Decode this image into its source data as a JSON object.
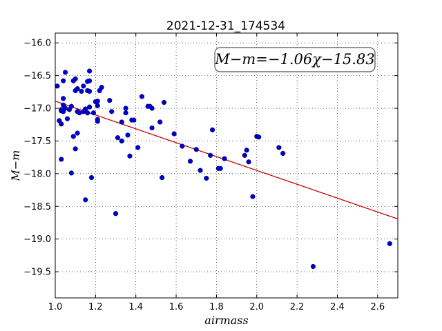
{
  "chart_data": {
    "type": "scatter",
    "title": "2021-12-31_174534",
    "xlabel": "airmass",
    "ylabel": "M−m",
    "xlim": [
      1.0,
      2.7
    ],
    "ylim": [
      -19.9,
      -15.85
    ],
    "y_inverted": true,
    "grid": true,
    "xticks": [
      "1.0",
      "1.2",
      "1.4",
      "1.6",
      "1.8",
      "2.0",
      "2.2",
      "2.4",
      "2.6"
    ],
    "yticks": [
      "−16.0",
      "−16.5",
      "−17.0",
      "−17.5",
      "−18.0",
      "−18.5",
      "−19.0",
      "−19.5"
    ],
    "annotation": "M−m=−1.06χ−15.83",
    "point_color": "#0000cc",
    "fit_color": "#cc0000",
    "fit": {
      "slope": -1.06,
      "intercept": -15.83
    },
    "points": [
      [
        1.01,
        -16.66
      ],
      [
        1.02,
        -17.19
      ],
      [
        1.03,
        -17.24
      ],
      [
        1.03,
        -17.78
      ],
      [
        1.03,
        -17.04
      ],
      [
        1.03,
        -17.02
      ],
      [
        1.04,
        -17.05
      ],
      [
        1.04,
        -16.85
      ],
      [
        1.04,
        -16.95
      ],
      [
        1.04,
        -16.58
      ],
      [
        1.05,
        -16.45
      ],
      [
        1.05,
        -17.0
      ],
      [
        1.06,
        -17.16
      ],
      [
        1.07,
        -17.02
      ],
      [
        1.08,
        -16.97
      ],
      [
        1.08,
        -17.99
      ],
      [
        1.09,
        -16.58
      ],
      [
        1.09,
        -17.43
      ],
      [
        1.1,
        -16.55
      ],
      [
        1.1,
        -16.73
      ],
      [
        1.1,
        -17.62
      ],
      [
        1.11,
        -17.38
      ],
      [
        1.11,
        -16.7
      ],
      [
        1.11,
        -17.05
      ],
      [
        1.12,
        -17.07
      ],
      [
        1.13,
        -16.74
      ],
      [
        1.14,
        -17.05
      ],
      [
        1.14,
        -16.66
      ],
      [
        1.15,
        -17.01
      ],
      [
        1.15,
        -18.4
      ],
      [
        1.16,
        -17.07
      ],
      [
        1.16,
        -16.73
      ],
      [
        1.16,
        -16.59
      ],
      [
        1.17,
        -16.98
      ],
      [
        1.17,
        -16.43
      ],
      [
        1.17,
        -16.58
      ],
      [
        1.17,
        -16.74
      ],
      [
        1.18,
        -18.06
      ],
      [
        1.19,
        -17.07
      ],
      [
        1.2,
        -16.9
      ],
      [
        1.21,
        -16.96
      ],
      [
        1.21,
        -16.89
      ],
      [
        1.21,
        -17.2
      ],
      [
        1.21,
        -17.17
      ],
      [
        1.22,
        -16.73
      ],
      [
        1.23,
        -16.68
      ],
      [
        1.27,
        -16.88
      ],
      [
        1.28,
        -17.05
      ],
      [
        1.3,
        -18.61
      ],
      [
        1.31,
        -17.45
      ],
      [
        1.33,
        -17.21
      ],
      [
        1.33,
        -17.5
      ],
      [
        1.35,
        -17.0
      ],
      [
        1.35,
        -17.07
      ],
      [
        1.36,
        -17.41
      ],
      [
        1.37,
        -17.73
      ],
      [
        1.38,
        -17.18
      ],
      [
        1.39,
        -17.18
      ],
      [
        1.41,
        -17.6
      ],
      [
        1.43,
        -16.82
      ],
      [
        1.46,
        -16.97
      ],
      [
        1.47,
        -16.97
      ],
      [
        1.48,
        -17.3
      ],
      [
        1.48,
        -17.0
      ],
      [
        1.52,
        -17.21
      ],
      [
        1.53,
        -18.06
      ],
      [
        1.54,
        -16.91
      ],
      [
        1.59,
        -17.39
      ],
      [
        1.63,
        -17.58
      ],
      [
        1.67,
        -17.81
      ],
      [
        1.7,
        -17.63
      ],
      [
        1.72,
        -17.95
      ],
      [
        1.75,
        -18.07
      ],
      [
        1.77,
        -17.72
      ],
      [
        1.78,
        -17.33
      ],
      [
        1.81,
        -17.92
      ],
      [
        1.82,
        -17.92
      ],
      [
        1.84,
        -17.77
      ],
      [
        1.94,
        -17.72
      ],
      [
        1.95,
        -17.64
      ],
      [
        1.96,
        -17.82
      ],
      [
        1.98,
        -18.35
      ],
      [
        2.0,
        -17.43
      ],
      [
        2.01,
        -17.44
      ],
      [
        2.11,
        -17.6
      ],
      [
        2.13,
        -17.69
      ],
      [
        2.28,
        -19.42
      ],
      [
        2.66,
        -19.07
      ]
    ]
  }
}
